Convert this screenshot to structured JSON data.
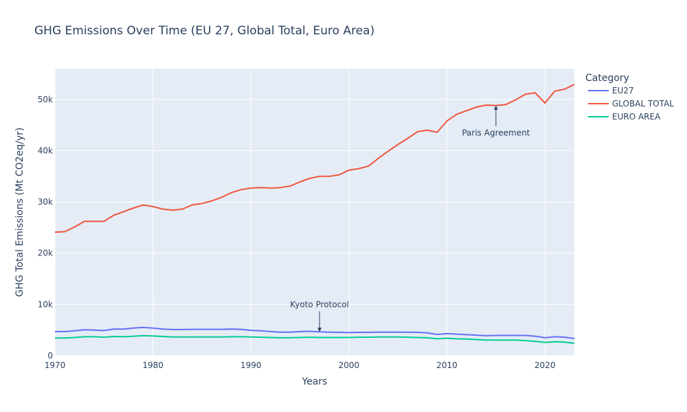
{
  "chart_data": {
    "type": "line",
    "title": "GHG Emissions Over Time (EU 27, Global Total, Euro Area)",
    "xlabel": "Years",
    "ylabel": "GHG Total Emissions (Mt CO2eq/yr)",
    "xlim": [
      1970,
      2023
    ],
    "ylim": [
      0,
      56000
    ],
    "xticks": [
      {
        "value": 1970,
        "label": "1970"
      },
      {
        "value": 1980,
        "label": "1980"
      },
      {
        "value": 1990,
        "label": "1990"
      },
      {
        "value": 2000,
        "label": "2000"
      },
      {
        "value": 2010,
        "label": "2010"
      },
      {
        "value": 2020,
        "label": "2020"
      }
    ],
    "yticks": [
      {
        "value": 0,
        "label": "0"
      },
      {
        "value": 10000,
        "label": "10k"
      },
      {
        "value": 20000,
        "label": "20k"
      },
      {
        "value": 30000,
        "label": "30k"
      },
      {
        "value": 40000,
        "label": "40k"
      },
      {
        "value": 50000,
        "label": "50k"
      }
    ],
    "grid": true,
    "legend": {
      "title": "Category",
      "position": "right"
    },
    "x": [
      1970,
      1971,
      1972,
      1973,
      1974,
      1975,
      1976,
      1977,
      1978,
      1979,
      1980,
      1981,
      1982,
      1983,
      1984,
      1985,
      1986,
      1987,
      1988,
      1989,
      1990,
      1991,
      1992,
      1993,
      1994,
      1995,
      1996,
      1997,
      1998,
      1999,
      2000,
      2001,
      2002,
      2003,
      2004,
      2005,
      2006,
      2007,
      2008,
      2009,
      2010,
      2011,
      2012,
      2013,
      2014,
      2015,
      2016,
      2017,
      2018,
      2019,
      2020,
      2021,
      2022,
      2023
    ],
    "series": [
      {
        "name": "EU27",
        "color": "#636efa",
        "values": [
          4700,
          4700,
          4850,
          5050,
          5000,
          4900,
          5200,
          5200,
          5400,
          5500,
          5400,
          5200,
          5100,
          5100,
          5150,
          5150,
          5150,
          5150,
          5200,
          5150,
          4950,
          4850,
          4700,
          4600,
          4600,
          4700,
          4750,
          4650,
          4600,
          4550,
          4500,
          4550,
          4550,
          4600,
          4600,
          4600,
          4600,
          4550,
          4450,
          4150,
          4300,
          4200,
          4100,
          4000,
          3900,
          3950,
          3950,
          3950,
          3950,
          3800,
          3500,
          3700,
          3600,
          3350
        ]
      },
      {
        "name": "GLOBAL TOTAL",
        "color": "#ef553b",
        "values": [
          24100,
          24200,
          25100,
          26200,
          26200,
          26200,
          27400,
          28100,
          28800,
          29400,
          29100,
          28600,
          28400,
          28600,
          29400,
          29700,
          30200,
          30900,
          31800,
          32400,
          32700,
          32800,
          32700,
          32800,
          33100,
          33900,
          34600,
          35000,
          35000,
          35300,
          36200,
          36500,
          37000,
          38500,
          39900,
          41200,
          42400,
          43700,
          44000,
          43600,
          45800,
          47100,
          47800,
          48500,
          48900,
          48800,
          49000,
          49900,
          51000,
          51300,
          49300,
          51600,
          52000,
          52900
        ]
      },
      {
        "name": "EURO AREA",
        "color": "#00cc96",
        "values": [
          3450,
          3450,
          3550,
          3700,
          3700,
          3600,
          3750,
          3700,
          3800,
          3900,
          3850,
          3750,
          3650,
          3650,
          3650,
          3650,
          3650,
          3650,
          3700,
          3700,
          3650,
          3600,
          3550,
          3500,
          3500,
          3550,
          3600,
          3550,
          3550,
          3550,
          3550,
          3600,
          3600,
          3650,
          3650,
          3650,
          3600,
          3550,
          3500,
          3300,
          3400,
          3300,
          3250,
          3150,
          3050,
          3050,
          3050,
          3050,
          2950,
          2800,
          2600,
          2700,
          2650,
          2450
        ]
      }
    ],
    "annotations": [
      {
        "text": "Paris Agreement",
        "x": 2015,
        "y": 48800,
        "arrow_dir": "below"
      },
      {
        "text": "Kyoto Protocol",
        "x": 1997,
        "y": 4650,
        "arrow_dir": "above"
      }
    ]
  }
}
